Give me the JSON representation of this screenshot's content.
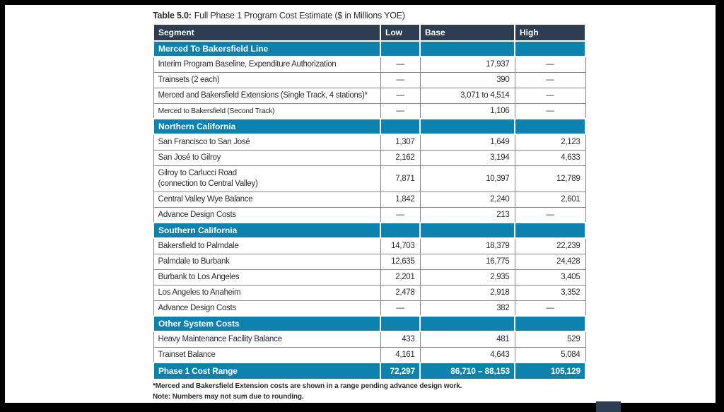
{
  "colors": {
    "navy": "#2e3d52",
    "teal": "#0e81ae",
    "border_gray": "#858585",
    "text": "#2b2b2b"
  },
  "title": {
    "bold": "Table 5.0:",
    "rest": "Full Phase 1 Program Cost Estimate ($ in Millions YOE)"
  },
  "table": {
    "columns": [
      "Segment",
      "Low",
      "Base",
      "High"
    ],
    "rows": [
      {
        "type": "section",
        "label": "Merced To Bakersfield Line"
      },
      {
        "type": "data",
        "label": "Interim Program Baseline, Expenditure Authorization",
        "low": "—",
        "base": "17,937",
        "high": "—"
      },
      {
        "type": "data",
        "label": "Trainsets (2 each)",
        "low": "—",
        "base": "390",
        "high": "—"
      },
      {
        "type": "data",
        "label": "Merced and Bakersfield Extensions (Single Track, 4 stations)*",
        "low": "—",
        "base": "3,071 to 4,514",
        "high": "—"
      },
      {
        "type": "data",
        "label": "Merced to Bakersfield (Second Track)",
        "low": "—",
        "base": "1,106",
        "high": "—",
        "small": true
      },
      {
        "type": "section",
        "label": "Northern California"
      },
      {
        "type": "data",
        "label": "San Francisco to San José",
        "low": "1,307",
        "base": "1,649",
        "high": "2,123"
      },
      {
        "type": "data",
        "label": "San José to Gilroy",
        "low": "2,162",
        "base": "3,194",
        "high": "4,633"
      },
      {
        "type": "data",
        "label": "Gilroy to Carlucci Road\n(connection to Central Valley)",
        "low": "7,871",
        "base": "10,397",
        "high": "12,789",
        "twoline": true
      },
      {
        "type": "data",
        "label": "Central Valley Wye Balance",
        "low": "1,842",
        "base": "2,240",
        "high": "2,601"
      },
      {
        "type": "data",
        "label": "Advance Design Costs",
        "low": "—",
        "base": "213",
        "high": "—"
      },
      {
        "type": "section",
        "label": "Southern California"
      },
      {
        "type": "data",
        "label": "Bakersfield to Palmdale",
        "low": "14,703",
        "base": "18,379",
        "high": "22,239"
      },
      {
        "type": "data",
        "label": "Palmdale to Burbank",
        "low": "12,635",
        "base": "16,775",
        "high": "24,428"
      },
      {
        "type": "data",
        "label": "Burbank to Los Angeles",
        "low": "2,201",
        "base": "2,935",
        "high": "3,405"
      },
      {
        "type": "data",
        "label": "Los Angeles to Anaheim",
        "low": "2,478",
        "base": "2,918",
        "high": "3,352"
      },
      {
        "type": "data",
        "label": "Advance Design Costs",
        "low": "—",
        "base": "382",
        "high": "—"
      },
      {
        "type": "section",
        "label": "Other System Costs"
      },
      {
        "type": "data",
        "label": "Heavy Maintenance Facility Balance",
        "low": "433",
        "base": "481",
        "high": "529"
      },
      {
        "type": "data",
        "label": "Trainset Balance",
        "low": "4,161",
        "base": "4,643",
        "high": "5,084"
      },
      {
        "type": "footer",
        "label": "Phase 1 Cost Range",
        "low": "72,297",
        "base": "86,710 – 88,153",
        "high": "105,129"
      }
    ]
  },
  "footnotes": [
    "*Merced and Bakersfield Extension costs are shown in a range pending advance design work.",
    "Note: Numbers may not sum due to rounding."
  ]
}
